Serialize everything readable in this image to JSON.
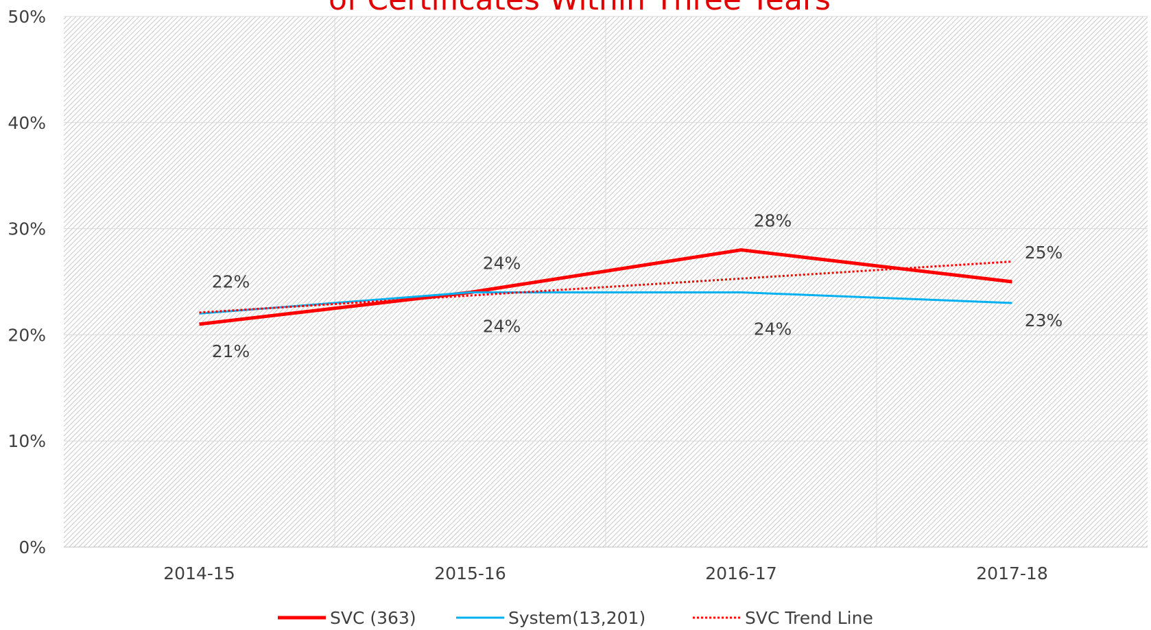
{
  "chart_data": {
    "type": "line",
    "title": "of Certificates Within Three Years",
    "categories": [
      "2014-15",
      "2015-16",
      "2016-17",
      "2017-18"
    ],
    "series": [
      {
        "name": "SVC (363)",
        "color": "#ff0000",
        "style": "solid",
        "width": 5,
        "values": [
          21,
          24,
          28,
          25
        ],
        "value_labels": [
          "21%",
          "24%",
          "28%",
          "25%"
        ]
      },
      {
        "name": "System(13,201)",
        "color": "#00b0f0",
        "style": "solid",
        "width": 3,
        "values": [
          22,
          24,
          24,
          23
        ],
        "value_labels": [
          "22%",
          "24%",
          "24%",
          "23%"
        ]
      },
      {
        "name": "SVC Trend Line",
        "color": "#ff0000",
        "style": "dotted",
        "width": 3,
        "values": [
          22.1,
          23.7,
          25.3,
          26.9
        ]
      }
    ],
    "ylim": [
      0,
      50
    ],
    "yticks": [
      {
        "value": 0,
        "label": "0%"
      },
      {
        "value": 10,
        "label": "10%"
      },
      {
        "value": 20,
        "label": "20%"
      },
      {
        "value": 30,
        "label": "30%"
      },
      {
        "value": 40,
        "label": "40%"
      },
      {
        "value": 50,
        "label": "50%"
      }
    ],
    "grid": true,
    "legend": "bottom"
  }
}
